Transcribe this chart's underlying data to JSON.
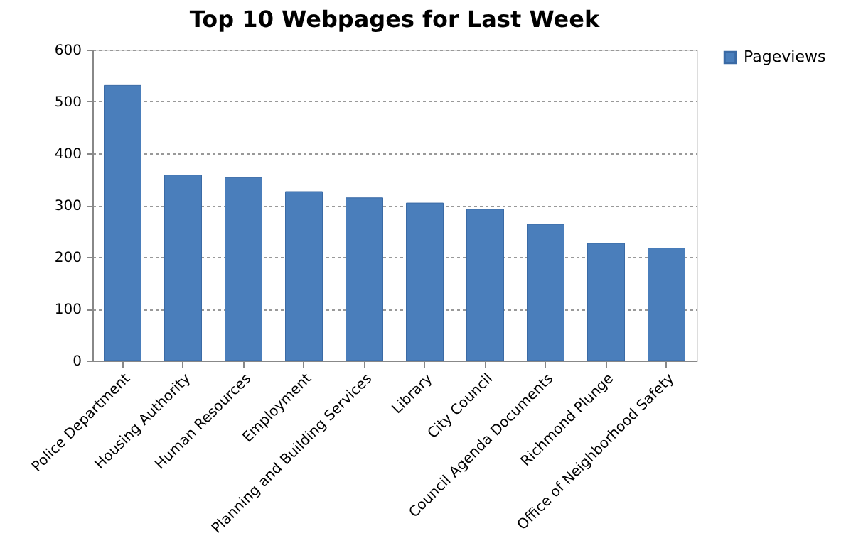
{
  "chart_data": {
    "type": "bar",
    "title": "Top 10 Webpages for Last Week",
    "categories": [
      "Police Department",
      "Housing Authority",
      "Human Resources",
      "Employment",
      "Planning and Building Services",
      "Library",
      "City Council",
      "Council Agenda Documents",
      "Richmond Plunge",
      "Office of Neighborhood Safety"
    ],
    "series": [
      {
        "name": "Pageviews",
        "color": "#4a7ebb",
        "values": [
          531,
          358,
          353,
          326,
          314,
          304,
          292,
          263,
          226,
          217
        ]
      }
    ],
    "ylim": [
      0,
      600
    ],
    "yticks": [
      0,
      100,
      200,
      300,
      400,
      500,
      600
    ],
    "grid": "y",
    "legend": "right"
  }
}
